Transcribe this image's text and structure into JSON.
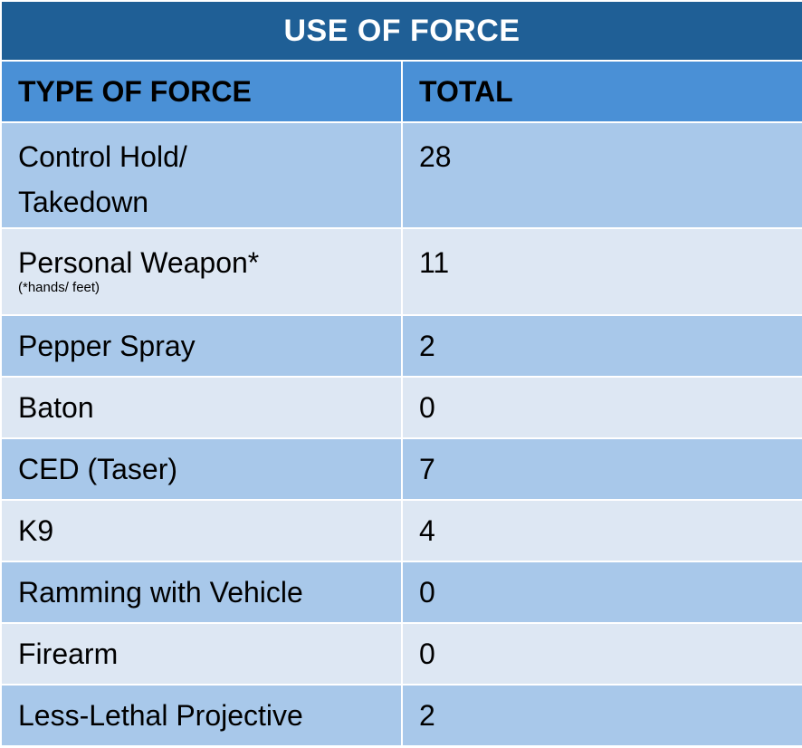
{
  "table": {
    "title": "USE OF FORCE",
    "headers": {
      "type": "TYPE OF FORCE",
      "total": "TOTAL"
    },
    "rows": [
      {
        "type_line1": "Control Hold/",
        "type_line2": "Takedown",
        "note": "",
        "total": "28"
      },
      {
        "type_line1": "Personal Weapon*",
        "type_line2": "",
        "note": "(*hands/ feet)",
        "total": "11"
      },
      {
        "type_line1": "Pepper Spray",
        "type_line2": "",
        "note": "",
        "total": "2"
      },
      {
        "type_line1": "Baton",
        "type_line2": "",
        "note": "",
        "total": "0"
      },
      {
        "type_line1": "CED (Taser)",
        "type_line2": "",
        "note": "",
        "total": "7"
      },
      {
        "type_line1": "K9",
        "type_line2": "",
        "note": "",
        "total": "4"
      },
      {
        "type_line1": "Ramming with Vehicle",
        "type_line2": "",
        "note": "",
        "total": "0"
      },
      {
        "type_line1": "Firearm",
        "type_line2": "",
        "note": "",
        "total": "0"
      },
      {
        "type_line1": "Less-Lethal Projective",
        "type_line2": "",
        "note": "",
        "total": "2"
      }
    ]
  },
  "colors": {
    "title_bg": "#1f5f96",
    "header_bg": "#4a90d6",
    "row_dark": "#a8c8ea",
    "row_light": "#dde7f3"
  }
}
